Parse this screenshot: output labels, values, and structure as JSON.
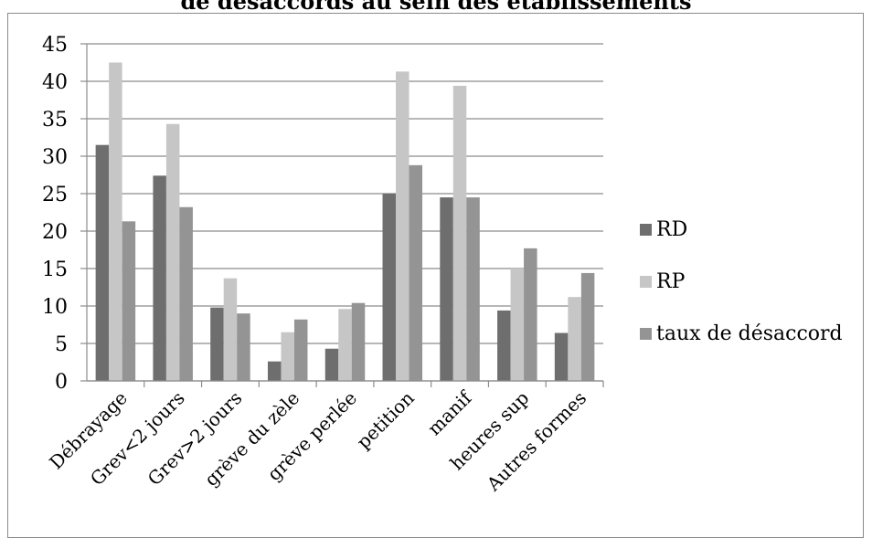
{
  "chart_data": {
    "type": "bar",
    "title": "de désaccords au sein des établissements",
    "categories": [
      "Débrayage",
      "Grev<2 jours",
      "Grev>2 jours",
      "grève du zèle",
      "grève perlée",
      "petition",
      "manif",
      "heures sup",
      "Autres formes"
    ],
    "series": [
      {
        "name": "RD",
        "values": [
          31.5,
          27.4,
          9.8,
          2.6,
          4.3,
          25.0,
          24.5,
          9.4,
          6.4
        ]
      },
      {
        "name": "RP",
        "values": [
          42.5,
          34.3,
          13.7,
          6.5,
          9.6,
          41.3,
          39.4,
          15.0,
          11.2
        ]
      },
      {
        "name": "taux de désaccord",
        "values": [
          21.3,
          23.2,
          9.0,
          8.2,
          10.4,
          28.8,
          24.5,
          17.7,
          14.4
        ]
      }
    ],
    "ylim": [
      0,
      45
    ],
    "yticks": [
      0,
      5,
      10,
      15,
      20,
      25,
      30,
      35,
      40,
      45
    ],
    "grid": true,
    "legend": "right",
    "colors": [
      "#6e6e6e",
      "#c6c6c6",
      "#949494"
    ]
  }
}
